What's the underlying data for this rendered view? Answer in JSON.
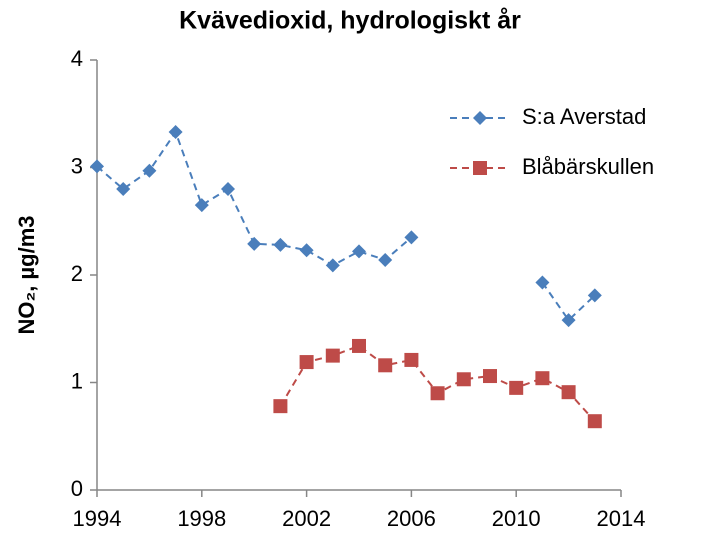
{
  "chart_data": {
    "type": "line",
    "title": "Kvävedioxid, hydrologiskt år",
    "y_label": "NO₂, µg/m3",
    "x": [
      1994,
      1995,
      1996,
      1997,
      1998,
      1999,
      2000,
      2001,
      2002,
      2003,
      2004,
      2005,
      2006,
      2007,
      2008,
      2009,
      2010,
      2011,
      2012,
      2013
    ],
    "series": [
      {
        "name": "S:a Averstad",
        "color": "#4a7ebb",
        "marker": "diamond",
        "values": [
          3.01,
          2.8,
          2.97,
          3.33,
          2.65,
          2.8,
          2.29,
          2.28,
          2.23,
          2.09,
          2.22,
          2.14,
          2.35,
          null,
          null,
          null,
          null,
          1.93,
          1.58,
          1.81
        ]
      },
      {
        "name": "Blåbärskullen",
        "color": "#be4b48",
        "marker": "square",
        "values": [
          null,
          null,
          null,
          null,
          null,
          null,
          null,
          0.78,
          1.19,
          1.25,
          1.34,
          1.16,
          1.21,
          0.9,
          1.03,
          1.06,
          0.95,
          1.04,
          0.91,
          0.64
        ]
      }
    ],
    "xlim": [
      1994,
      2014
    ],
    "xticks": [
      1994,
      1998,
      2002,
      2006,
      2010,
      2014
    ],
    "ylim": [
      0,
      4
    ],
    "yticks": [
      0,
      1,
      2,
      3,
      4
    ],
    "grid": false,
    "line_style": "dashed",
    "legend": "upper right"
  }
}
